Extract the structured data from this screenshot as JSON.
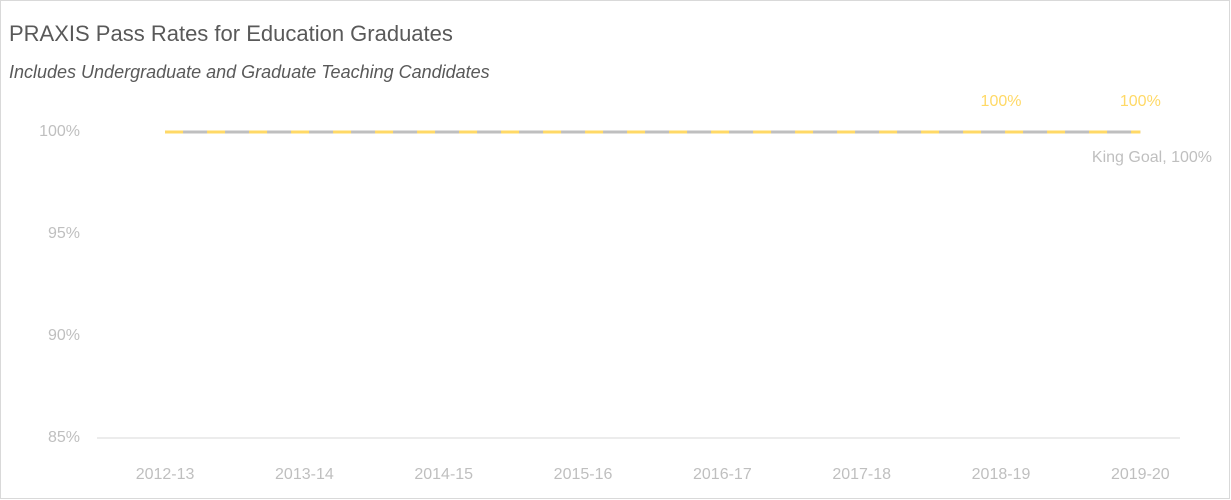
{
  "chart_data": {
    "type": "line",
    "title": "PRAXIS Pass Rates for Education Graduates",
    "subtitle": "Includes Undergraduate and Graduate Teaching Candidates",
    "categories": [
      "2012-13",
      "2013-14",
      "2014-15",
      "2015-16",
      "2016-17",
      "2017-18",
      "2018-19",
      "2019-20"
    ],
    "series": [
      {
        "color": "#bfbfbf",
        "dashed": false,
        "values": [
          100,
          100,
          100,
          100,
          100,
          100,
          100,
          100
        ]
      },
      {
        "color": "#ffd966",
        "dashed": true,
        "values": [
          100,
          100,
          100,
          100,
          100,
          100,
          100,
          100
        ],
        "value_labels": [
          null,
          null,
          null,
          null,
          null,
          null,
          "100%",
          "100%"
        ]
      }
    ],
    "annotations": [
      "King Goal, 100%"
    ],
    "ylim": [
      85,
      100
    ],
    "yticks": [
      {
        "value": 85,
        "label": "85%"
      },
      {
        "value": 90,
        "label": "90%"
      },
      {
        "value": 95,
        "label": "95%"
      },
      {
        "value": 100,
        "label": "100%"
      }
    ],
    "grid": false
  }
}
